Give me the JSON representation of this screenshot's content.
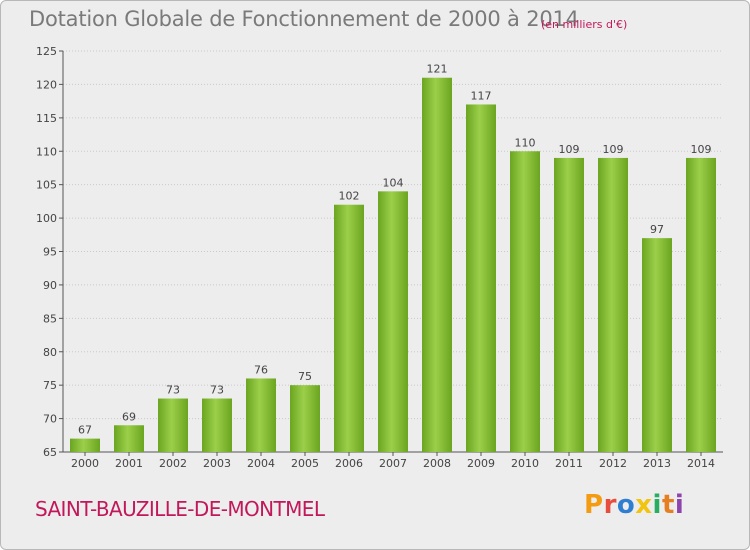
{
  "chart_data": {
    "type": "bar",
    "title": "Dotation Globale de Fonctionnement de 2000 à 2014",
    "subtitle": "(en milliers d'€)",
    "categories": [
      "2000",
      "2001",
      "2002",
      "2003",
      "2004",
      "2005",
      "2006",
      "2007",
      "2008",
      "2009",
      "2010",
      "2011",
      "2012",
      "2013",
      "2014"
    ],
    "values": [
      67,
      69,
      73,
      73,
      76,
      75,
      102,
      104,
      121,
      117,
      110,
      109,
      109,
      97,
      109
    ],
    "ylim": [
      65,
      125
    ],
    "yticks": [
      65,
      70,
      75,
      80,
      85,
      90,
      95,
      100,
      105,
      110,
      115,
      120,
      125
    ],
    "grid": true,
    "bar_color": "#7dba2e"
  },
  "commune": "SAINT-BAUZILLE-DE-MONTMEL",
  "logo": {
    "letters": [
      "P",
      "r",
      "o",
      "x",
      "i",
      "t",
      "i"
    ],
    "colors": [
      "#f39c12",
      "#e74c3c",
      "#2f7fd1",
      "#f1c40f",
      "#27ae60",
      "#e67e22",
      "#8e44ad"
    ]
  }
}
